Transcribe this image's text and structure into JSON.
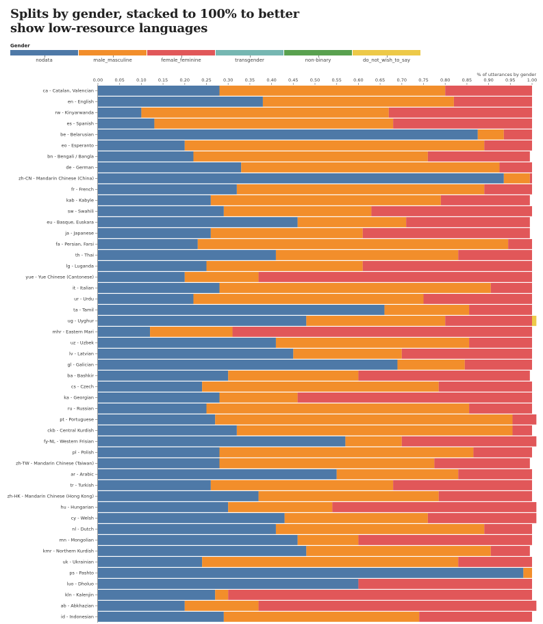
{
  "chart_data": {
    "type": "bar",
    "orientation": "horizontal",
    "stacked": "normalize",
    "title": "Splits by gender, stacked to 100% to better show low-resource languages",
    "xlabel": "% of utterances by gender",
    "ylabel": "",
    "xlim": [
      0,
      1
    ],
    "xticks": [
      "0.00",
      "0.05",
      "0.10",
      "0.15",
      "0.20",
      "0.25",
      "0.30",
      "0.35",
      "0.40",
      "0.45",
      "0.50",
      "0.55",
      "0.60",
      "0.65",
      "0.70",
      "0.75",
      "0.80",
      "0.85",
      "0.90",
      "0.95",
      "1.00"
    ],
    "legend": {
      "title": "Gender",
      "position": "top",
      "entries": [
        {
          "name": "nodata",
          "color": "#4e79a7"
        },
        {
          "name": "male_masculine",
          "color": "#f28e2b"
        },
        {
          "name": "female_feminine",
          "color": "#e15759"
        },
        {
          "name": "transgender",
          "color": "#76b7b2"
        },
        {
          "name": "non-binary",
          "color": "#59a14f"
        },
        {
          "name": "do_not_wish_to_say",
          "color": "#edc948"
        }
      ]
    },
    "categories": [
      "ca - Catalan, Valencian",
      "en - English",
      "rw - Kinyarwanda",
      "es - Spanish",
      "be - Belarusian",
      "eo - Esperanto",
      "bn - Bengali / Bangla",
      "de - German",
      "zh-CN - Mandarin Chinese (China)",
      "fr - French",
      "kab - Kabyle",
      "sw - Swahili",
      "eu - Basque, Euskara",
      "ja - Japanese",
      "fa - Persian, Farsi",
      "th - Thai",
      "lg - Luganda",
      "yue - Yue Chinese (Cantonese)",
      "it - Italian",
      "ur - Urdu",
      "ta - Tamil",
      "ug - Uyghur",
      "mhr - Eastern Mari",
      "uz - Uzbek",
      "lv - Latvian",
      "gl - Galician",
      "ba - Bashkir",
      "cs - Czech",
      "ka - Georgian",
      "ru - Russian",
      "pt - Portuguese",
      "ckb - Central Kurdish",
      "fy-NL - Western Frisian",
      "pl - Polish",
      "zh-TW - Mandarin Chinese (Taiwan)",
      "ar - Arabic",
      "tr - Turkish",
      "zh-HK - Mandarin Chinese (Hong Kong)",
      "hu - Hungarian",
      "cy - Welsh",
      "nl - Dutch",
      "mn - Mongolian",
      "kmr - Northern Kurdish",
      "uk - Ukrainian",
      "ps - Pashto",
      "luo - Dholuo",
      "kln - Kalenjin",
      "ab - Abkhazian",
      "id - Indonesian"
    ],
    "series": [
      {
        "name": "nodata",
        "values": [
          0.28,
          0.38,
          0.1,
          0.13,
          0.875,
          0.2,
          0.22,
          0.33,
          0.935,
          0.32,
          0.26,
          0.29,
          0.46,
          0.26,
          0.23,
          0.41,
          0.25,
          0.2,
          0.28,
          0.22,
          0.66,
          0.48,
          0.12,
          0.41,
          0.45,
          0.69,
          0.3,
          0.24,
          0.28,
          0.25,
          0.27,
          0.32,
          0.57,
          0.28,
          0.28,
          0.55,
          0.26,
          0.37,
          0.3,
          0.43,
          0.41,
          0.46,
          0.48,
          0.24,
          0.98,
          0.6,
          0.27,
          0.2,
          0.29
        ]
      },
      {
        "name": "male_masculine",
        "values": [
          0.52,
          0.44,
          0.57,
          0.55,
          0.06,
          0.69,
          0.54,
          0.595,
          0.06,
          0.57,
          0.53,
          0.34,
          0.25,
          0.35,
          0.715,
          0.42,
          0.36,
          0.17,
          0.625,
          0.53,
          0.195,
          0.32,
          0.19,
          0.445,
          0.25,
          0.155,
          0.3,
          0.545,
          0.18,
          0.605,
          0.685,
          0.635,
          0.13,
          0.585,
          0.495,
          0.28,
          0.42,
          0.415,
          0.24,
          0.33,
          0.48,
          0.14,
          0.425,
          0.59,
          0.02,
          0.0,
          0.03,
          0.17,
          0.45
        ]
      },
      {
        "name": "female_feminine",
        "values": [
          0.2,
          0.18,
          0.33,
          0.32,
          0.065,
          0.11,
          0.235,
          0.075,
          0.005,
          0.11,
          0.205,
          0.37,
          0.285,
          0.385,
          0.055,
          0.17,
          0.39,
          0.63,
          0.095,
          0.25,
          0.145,
          0.2,
          0.69,
          0.145,
          0.3,
          0.155,
          0.395,
          0.215,
          0.54,
          0.145,
          0.055,
          0.045,
          0.31,
          0.135,
          0.22,
          0.17,
          0.32,
          0.215,
          0.47,
          0.25,
          0.11,
          0.4,
          0.09,
          0.17,
          0.0,
          0.4,
          0.7,
          0.64,
          0.26
        ]
      },
      {
        "name": "transgender",
        "values": [
          0,
          0,
          0,
          0,
          0,
          0,
          0,
          0,
          0,
          0,
          0,
          0,
          0,
          0,
          0,
          0,
          0,
          0,
          0,
          0,
          0,
          0,
          0,
          0,
          0,
          0,
          0,
          0,
          0,
          0,
          0,
          0,
          0,
          0,
          0,
          0,
          0,
          0,
          0,
          0,
          0,
          0,
          0,
          0,
          0,
          0,
          0,
          0,
          0
        ]
      },
      {
        "name": "non-binary",
        "values": [
          0,
          0,
          0,
          0,
          0,
          0,
          0,
          0,
          0,
          0,
          0,
          0,
          0,
          0,
          0,
          0,
          0,
          0,
          0,
          0,
          0,
          0,
          0,
          0,
          0,
          0,
          0,
          0,
          0,
          0,
          0,
          0,
          0,
          0,
          0,
          0,
          0,
          0,
          0,
          0,
          0,
          0,
          0,
          0,
          0,
          0,
          0,
          0,
          0
        ]
      },
      {
        "name": "do_not_wish_to_say",
        "values": [
          0,
          0,
          0,
          0,
          0,
          0,
          0,
          0,
          0,
          0,
          0,
          0,
          0,
          0,
          0,
          0,
          0,
          0,
          0,
          0,
          0,
          0.01,
          0,
          0,
          0,
          0,
          0,
          0,
          0,
          0,
          0,
          0,
          0,
          0,
          0,
          0,
          0,
          0,
          0,
          0,
          0,
          0,
          0,
          0,
          0,
          0,
          0,
          0,
          0
        ]
      }
    ]
  }
}
